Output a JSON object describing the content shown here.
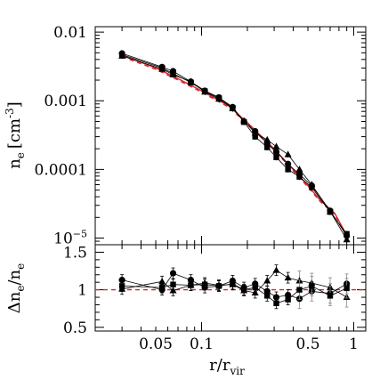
{
  "chart_data": [
    {
      "panel": "top",
      "type": "line",
      "ylabel_main": "n",
      "ylabel_sub": "e",
      "ylabel_unit": "[cm",
      "ylabel_unit_sup": "-3",
      "ylabel_close": "]",
      "yscale": "log",
      "xscale": "log",
      "xlim": [
        0.02,
        1.2
      ],
      "ylim": [
        8e-06,
        0.012
      ],
      "yticklabels": [
        {
          "value": 0.01,
          "label": "0.01"
        },
        {
          "value": 0.001,
          "label": "0.001"
        },
        {
          "value": 0.0001,
          "label": "0.0001"
        },
        {
          "value": 1e-05,
          "label_base": "10",
          "label_sup": "−5"
        }
      ],
      "model": {
        "x": [
          0.03,
          0.05,
          0.07,
          0.1,
          0.15,
          0.2,
          0.3,
          0.4,
          0.5,
          0.6,
          0.75,
          0.9
        ],
        "y": [
          0.0046,
          0.003,
          0.0021,
          0.0014,
          0.00085,
          0.00048,
          0.0002,
          0.0001,
          5.8e-05,
          3.6e-05,
          2.3e-05,
          1.1e-05
        ]
      },
      "series": [
        {
          "marker": "circle",
          "x": [
            0.03,
            0.055,
            0.065,
            0.085,
            0.105,
            0.13,
            0.16,
            0.19,
            0.225,
            0.27,
            0.31,
            0.37,
            0.44,
            0.53,
            0.7,
            0.9
          ],
          "y": [
            0.0049,
            0.0031,
            0.0027,
            0.0019,
            0.0014,
            0.00112,
            0.00081,
            0.0005,
            0.00036,
            0.00024,
            0.00018,
            0.00012,
            8.5e-05,
            5.8e-05,
            2.5e-05,
            1.08e-05
          ]
        },
        {
          "marker": "triangle",
          "x": [
            0.03,
            0.055,
            0.065,
            0.085,
            0.105,
            0.13,
            0.16,
            0.19,
            0.225,
            0.27,
            0.31,
            0.37,
            0.44,
            0.53,
            0.7,
            0.9
          ],
          "y": [
            0.0045,
            0.0029,
            0.0024,
            0.0019,
            0.00135,
            0.00106,
            0.00077,
            0.00051,
            0.00034,
            0.00027,
            0.000215,
            0.000165,
            0.0001,
            6e-05,
            2.45e-05,
            9.5e-06
          ]
        },
        {
          "marker": "square",
          "x": [
            0.03,
            0.055,
            0.065,
            0.085,
            0.105,
            0.13,
            0.16,
            0.19,
            0.225,
            0.27,
            0.31,
            0.37,
            0.44,
            0.53,
            0.7,
            0.9
          ],
          "y": [
            0.0047,
            0.003,
            0.0025,
            0.00185,
            0.00138,
            0.0011,
            0.00079,
            0.00049,
            0.0003,
            0.00021,
            0.00015,
            0.0001,
            7.8e-05,
            5.5e-05,
            2.4e-05,
            1.15e-05
          ]
        }
      ]
    },
    {
      "panel": "bottom",
      "type": "line",
      "ylabel_main": "Δn",
      "ylabel_sub1": "e",
      "ylabel_mid": "/n",
      "ylabel_sub2": "e",
      "xlabel_main": "r/r",
      "xlabel_sub": "vir",
      "xscale": "log",
      "xlim": [
        0.02,
        1.2
      ],
      "ylim": [
        0.45,
        1.6
      ],
      "yticklabels": [
        {
          "value": 0.5,
          "label": "0.5"
        },
        {
          "value": 1.0,
          "label": "1"
        },
        {
          "value": 1.5,
          "label": "1.5"
        }
      ],
      "xticklabels": [
        {
          "value": 0.05,
          "label": "0.05"
        },
        {
          "value": 0.1,
          "label": "0.1"
        },
        {
          "value": 0.5,
          "label": "0.5"
        },
        {
          "value": 1,
          "label": "1"
        }
      ],
      "reference": 1.0,
      "series": [
        {
          "marker": "circle",
          "x": [
            0.03,
            0.055,
            0.065,
            0.085,
            0.105,
            0.13,
            0.16,
            0.19,
            0.225,
            0.27,
            0.31,
            0.37,
            0.44,
            0.53,
            0.7,
            0.9
          ],
          "y": [
            1.13,
            1.0,
            1.22,
            1.13,
            1.03,
            1.05,
            1.12,
            1.03,
            1.08,
            0.98,
            0.9,
            0.93,
            0.88,
            0.98,
            0.95,
            1.08
          ]
        },
        {
          "marker": "triangle",
          "x": [
            0.03,
            0.055,
            0.065,
            0.085,
            0.105,
            0.13,
            0.16,
            0.19,
            0.225,
            0.27,
            0.31,
            0.37,
            0.44,
            0.53,
            0.7,
            0.9
          ],
          "y": [
            1.01,
            1.11,
            0.99,
            1.06,
            1.09,
            1.06,
            1.07,
            0.99,
            0.96,
            1.12,
            1.26,
            1.16,
            1.12,
            1.09,
            1.03,
            0.9
          ]
        },
        {
          "marker": "square",
          "x": [
            0.03,
            0.055,
            0.065,
            0.085,
            0.105,
            0.13,
            0.16,
            0.19,
            0.225,
            0.27,
            0.31,
            0.37,
            0.44,
            0.53,
            0.7,
            0.9
          ],
          "y": [
            1.05,
            1.03,
            1.07,
            1.06,
            1.07,
            1.05,
            1.08,
            1.0,
            1.03,
            0.92,
            0.82,
            0.87,
            1.0,
            1.05,
            0.92,
            1.02
          ]
        }
      ]
    }
  ]
}
